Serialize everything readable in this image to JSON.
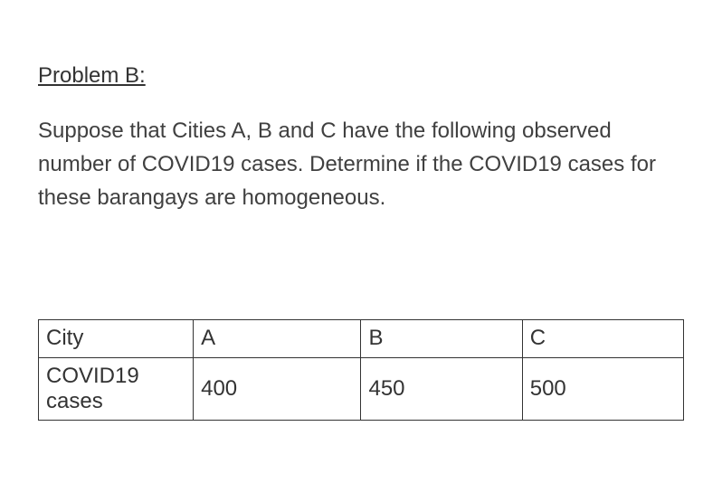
{
  "heading": "Problem B:",
  "paragraph": "Suppose that Cities A, B and C have the following observed number of COVID19 cases. Determine if the COVID19 cases for these barangays are homogeneous.",
  "table": {
    "columns": [
      "City",
      "A",
      "B",
      "C"
    ],
    "rows": [
      [
        "COVID19 cases",
        "400",
        "450",
        "500"
      ]
    ],
    "border_color": "#333333",
    "text_color": "#333333",
    "font_size": 24,
    "col_widths_pct": [
      24,
      26,
      25,
      25
    ]
  },
  "styling": {
    "background_color": "#ffffff",
    "heading_color": "#333333",
    "paragraph_color": "#404040",
    "font_family": "Arial, Helvetica, sans-serif",
    "heading_fontsize": 24,
    "paragraph_fontsize": 24,
    "paragraph_line_height": 1.55
  }
}
